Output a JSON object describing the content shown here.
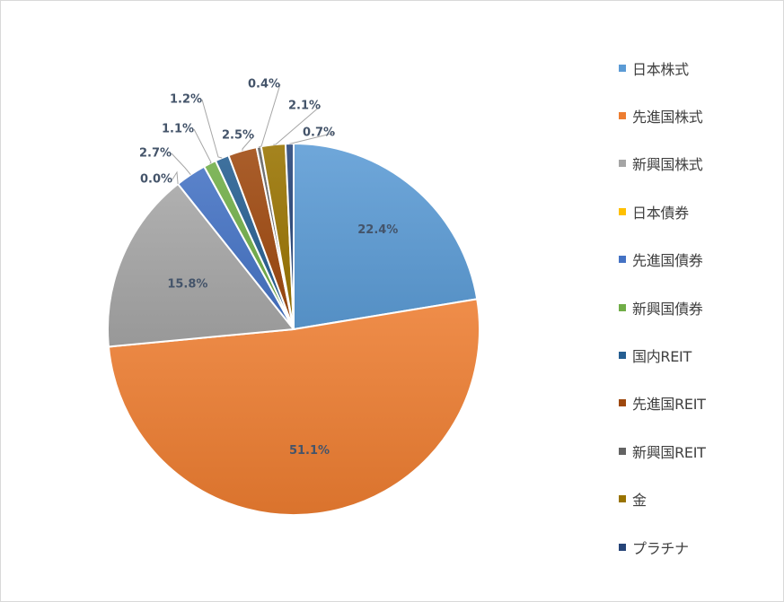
{
  "chart_data": {
    "type": "pie",
    "title": "",
    "categories": [
      "日本株式",
      "先進国株式",
      "新興国株式",
      "日本債券",
      "先進国債券",
      "新興国債券",
      "国内REIT",
      "先進国REIT",
      "新興国REIT",
      "金",
      "プラチナ"
    ],
    "values": [
      22.4,
      51.1,
      15.8,
      0.0,
      2.7,
      1.1,
      1.2,
      2.5,
      0.4,
      2.1,
      0.7
    ],
    "labels": [
      "22.4%",
      "51.1%",
      "15.8%",
      "0.0%",
      "2.7%",
      "1.1%",
      "1.2%",
      "2.5%",
      "0.4%",
      "2.1%",
      "0.7%"
    ],
    "colors": [
      "#5b9bd5",
      "#ed7d31",
      "#a5a5a5",
      "#ffc000",
      "#4472c4",
      "#70ad47",
      "#255e91",
      "#9e480e",
      "#636363",
      "#997300",
      "#264478"
    ],
    "legend_position": "right",
    "start_angle_deg": 0,
    "direction": "clockwise"
  }
}
